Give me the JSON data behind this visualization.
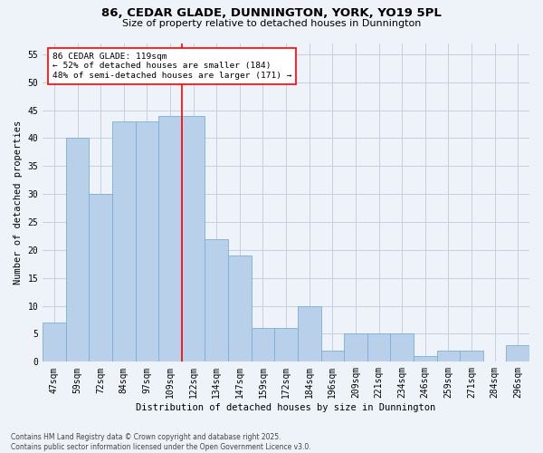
{
  "title1": "86, CEDAR GLADE, DUNNINGTON, YORK, YO19 5PL",
  "title2": "Size of property relative to detached houses in Dunnington",
  "xlabel": "Distribution of detached houses by size in Dunnington",
  "ylabel": "Number of detached properties",
  "categories": [
    "47sqm",
    "59sqm",
    "72sqm",
    "84sqm",
    "97sqm",
    "109sqm",
    "122sqm",
    "134sqm",
    "147sqm",
    "159sqm",
    "172sqm",
    "184sqm",
    "196sqm",
    "209sqm",
    "221sqm",
    "234sqm",
    "246sqm",
    "259sqm",
    "271sqm",
    "284sqm",
    "296sqm"
  ],
  "values": [
    7,
    40,
    30,
    43,
    43,
    44,
    44,
    22,
    19,
    6,
    6,
    10,
    2,
    5,
    5,
    5,
    1,
    2,
    2,
    0,
    3
  ],
  "bar_color": "#b8d0ea",
  "bar_edgecolor": "#7aafd4",
  "vline_x_index": 6,
  "annotation_text": "86 CEDAR GLADE: 119sqm\n← 52% of detached houses are smaller (184)\n48% of semi-detached houses are larger (171) →",
  "annotation_box_color": "white",
  "annotation_box_edgecolor": "red",
  "vline_color": "red",
  "ylim_max": 57,
  "yticks": [
    0,
    5,
    10,
    15,
    20,
    25,
    30,
    35,
    40,
    45,
    50,
    55
  ],
  "footnote": "Contains HM Land Registry data © Crown copyright and database right 2025.\nContains public sector information licensed under the Open Government Licence v3.0.",
  "bg_color": "#eef2f9",
  "grid_color": "#c5cfe0",
  "title1_fontsize": 9.5,
  "title2_fontsize": 8.0,
  "xlabel_fontsize": 7.5,
  "ylabel_fontsize": 7.5,
  "tick_fontsize": 7.0,
  "annot_fontsize": 6.8,
  "footnote_fontsize": 5.5
}
